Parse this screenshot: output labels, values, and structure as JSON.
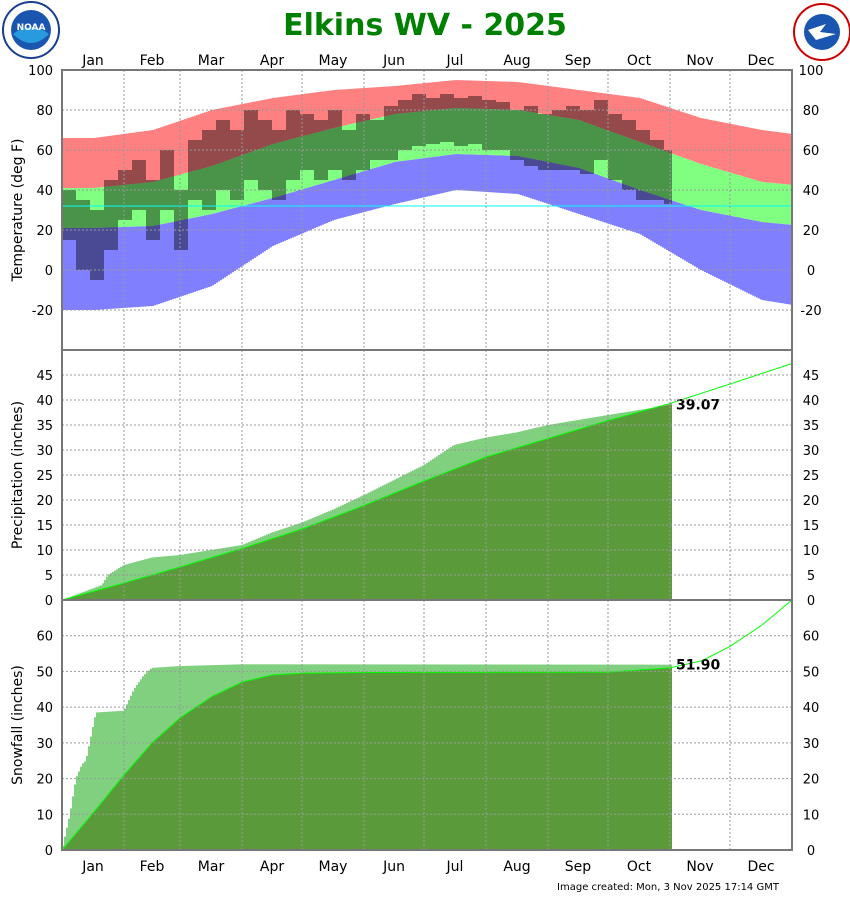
{
  "title": "Elkins WV - 2025",
  "footer": "Image created: Mon, 3 Nov 2025 17:14 GMT",
  "logos": {
    "left": "NOAA",
    "right": "NATIONAL WEATHER SERVICE"
  },
  "colors": {
    "title": "#008000",
    "record_high": "#ff8080",
    "normal_range": "#80ff80",
    "record_low": "#8080ff",
    "observed": "#000000",
    "freezing": "#00ffff",
    "obs_precip": "#80d080",
    "normal_precip": "#5a9a3a",
    "below_normal": "#b8988a",
    "normal_line": "#00ff00"
  },
  "chart_data": [
    {
      "type": "bar",
      "ylabel": "Temperature (deg F)",
      "ylim": [
        -40,
        100
      ],
      "yticks": [
        100,
        80,
        60,
        40,
        20,
        0,
        -20
      ],
      "freezing_line": 32,
      "months": [
        "Jan",
        "Feb",
        "Mar",
        "Apr",
        "May",
        "Jun",
        "Jul",
        "Aug",
        "Sep",
        "Oct",
        "Nov",
        "Dec"
      ],
      "month_start_days": [
        0,
        31,
        59,
        90,
        120,
        151,
        181,
        212,
        243,
        273,
        304,
        334,
        365
      ],
      "grid": true,
      "monthly_mid": {
        "record_high": [
          66,
          70,
          80,
          86,
          90,
          92,
          95,
          94,
          90,
          86,
          76,
          70,
          66
        ],
        "normal_high": [
          41,
          44,
          52,
          63,
          71,
          78,
          81,
          80,
          75,
          64,
          53,
          44,
          41
        ],
        "normal_low": [
          21,
          22,
          28,
          36,
          45,
          54,
          58,
          57,
          51,
          40,
          30,
          24,
          21
        ],
        "record_low": [
          -20,
          -18,
          -8,
          12,
          25,
          33,
          40,
          38,
          28,
          18,
          0,
          -15,
          -20
        ]
      },
      "observed_weekly": {
        "high": [
          40,
          35,
          30,
          45,
          50,
          55,
          45,
          60,
          40,
          65,
          70,
          75,
          70,
          80,
          75,
          70,
          80,
          78,
          75,
          80,
          70,
          78,
          75,
          82,
          85,
          88,
          86,
          88,
          86,
          87,
          85,
          84,
          80,
          82,
          78,
          80,
          82,
          80,
          85,
          78,
          75,
          70,
          65,
          60
        ],
        "low": [
          15,
          0,
          -5,
          10,
          25,
          30,
          15,
          30,
          10,
          35,
          30,
          40,
          35,
          45,
          40,
          35,
          45,
          50,
          45,
          50,
          45,
          50,
          55,
          55,
          60,
          62,
          63,
          64,
          62,
          63,
          60,
          60,
          55,
          52,
          50,
          50,
          50,
          48,
          55,
          45,
          40,
          35,
          35,
          33
        ]
      },
      "observed_last_day": 305
    },
    {
      "type": "area",
      "ylabel": "Precipitation (inches)",
      "ylim": [
        0,
        50
      ],
      "yticks": [
        0,
        5,
        10,
        15,
        20,
        25,
        30,
        35,
        40,
        45
      ],
      "observed_label": "39.07",
      "observed_cumulative": {
        "days": [
          0,
          20,
          23,
          31,
          45,
          59,
          90,
          105,
          120,
          135,
          151,
          166,
          181,
          196,
          212,
          227,
          243,
          258,
          273,
          305
        ],
        "values": [
          0,
          3,
          5,
          7,
          8.5,
          9,
          11,
          13.5,
          15.5,
          18,
          21,
          24,
          27,
          31,
          32.5,
          33.5,
          35,
          36,
          37,
          39.07
        ]
      },
      "normal_cumulative": {
        "days": [
          0,
          31,
          59,
          90,
          120,
          151,
          181,
          212,
          243,
          273,
          304,
          334,
          365
        ],
        "values": [
          0,
          3.4,
          6.6,
          10.3,
          14.2,
          18.9,
          23.8,
          28.6,
          32.3,
          35.9,
          39.3,
          43.2,
          47.3
        ]
      }
    },
    {
      "type": "area",
      "ylabel": "Snowfall (inches)",
      "ylim": [
        0,
        70
      ],
      "yticks": [
        0,
        10,
        20,
        30,
        40,
        50,
        60
      ],
      "observed_label": "51.90",
      "observed_cumulative": {
        "days": [
          0,
          2,
          4,
          7,
          10,
          12,
          17,
          31,
          36,
          41,
          45,
          59,
          90,
          305
        ],
        "values": [
          0,
          5,
          10,
          20,
          24,
          25,
          38.5,
          39,
          45,
          49,
          51,
          51.5,
          52,
          51.9
        ]
      },
      "normal_cumulative": {
        "days": [
          0,
          15,
          31,
          45,
          59,
          75,
          90,
          105,
          120,
          150,
          273,
          304,
          320,
          334,
          350,
          365
        ],
        "values": [
          0,
          10,
          21,
          30,
          37,
          43,
          47,
          49,
          49.5,
          49.7,
          49.8,
          51,
          53,
          57,
          63,
          70
        ]
      }
    }
  ]
}
